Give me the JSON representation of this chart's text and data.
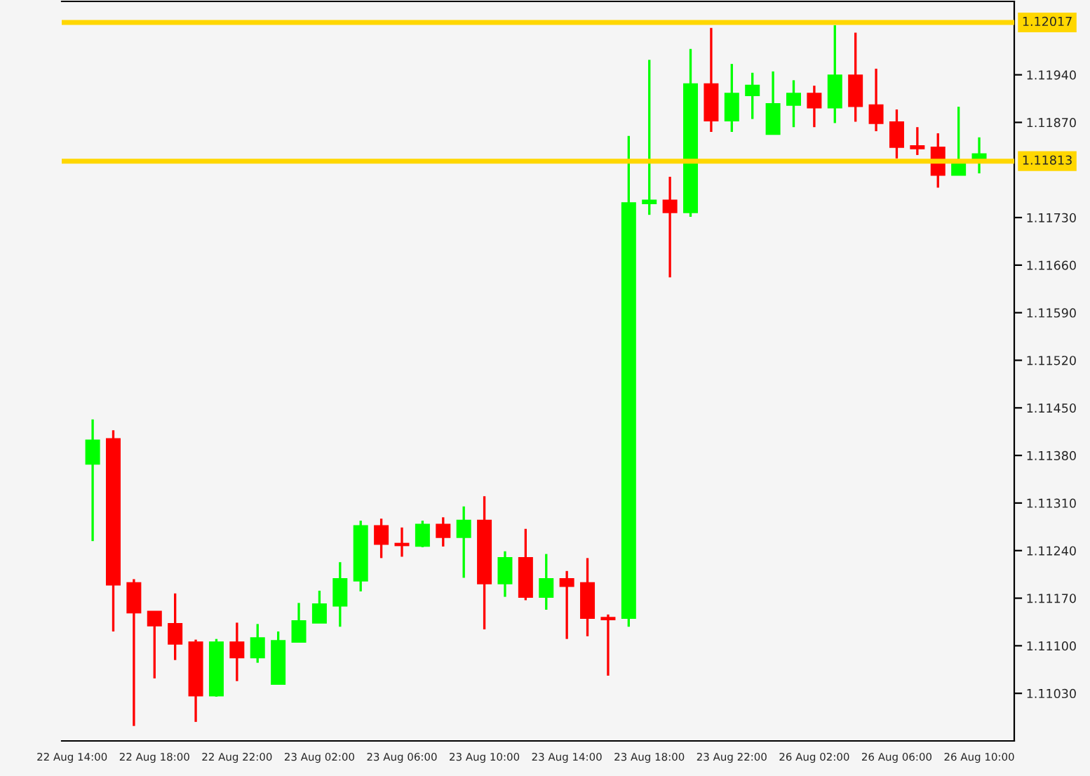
{
  "chart_data": {
    "type": "candlestick",
    "categories": [
      "22 Aug 14:00",
      null,
      null,
      null,
      "22 Aug 18:00",
      null,
      null,
      null,
      "22 Aug 22:00",
      null,
      null,
      null,
      "23 Aug 02:00",
      null,
      null,
      null,
      "23 Aug 06:00",
      null,
      null,
      null,
      "23 Aug 10:00",
      null,
      null,
      null,
      "23 Aug 14:00",
      null,
      null,
      null,
      "23 Aug 18:00",
      null,
      null,
      null,
      "23 Aug 22:00",
      null,
      null,
      null,
      "26 Aug 02:00",
      null,
      null,
      null,
      "26 Aug 06:00",
      null,
      null,
      null,
      "26 Aug 10:00"
    ],
    "ohlc": [
      null,
      [
        1.11368,
        1.11433,
        1.11254,
        1.11402
      ],
      [
        1.11404,
        1.11417,
        1.11121,
        1.1119
      ],
      [
        1.11192,
        1.11198,
        1.10982,
        1.11149
      ],
      [
        1.1115,
        1.1115,
        1.11052,
        1.1113
      ],
      [
        1.11132,
        1.11177,
        1.11079,
        1.11103
      ],
      [
        1.11105,
        1.11109,
        1.10988,
        1.11027
      ],
      [
        1.11027,
        1.1111,
        1.11025,
        1.11105
      ],
      [
        1.11105,
        1.11134,
        1.11048,
        1.11083
      ],
      [
        1.11083,
        1.11132,
        1.11075,
        1.11111
      ],
      [
        1.11044,
        1.11121,
        1.11044,
        1.11107
      ],
      [
        1.11106,
        1.11163,
        1.11106,
        1.11136
      ],
      [
        1.11134,
        1.11181,
        1.11134,
        1.11161
      ],
      [
        1.11159,
        1.11223,
        1.11128,
        1.11198
      ],
      [
        1.11196,
        1.11284,
        1.1118,
        1.11276
      ],
      [
        1.11276,
        1.11287,
        1.11229,
        1.1125
      ],
      [
        1.1125,
        1.11274,
        1.11231,
        1.11248
      ],
      [
        1.11247,
        1.11284,
        1.11245,
        1.11278
      ],
      [
        1.11278,
        1.11289,
        1.11246,
        1.1126
      ],
      [
        1.1126,
        1.11305,
        1.112,
        1.11284
      ],
      [
        1.11284,
        1.1132,
        1.11124,
        1.11192
      ],
      [
        1.11192,
        1.11239,
        1.11172,
        1.11229
      ],
      [
        1.11229,
        1.11272,
        1.11167,
        1.11172
      ],
      [
        1.11172,
        1.11235,
        1.11153,
        1.11198
      ],
      [
        1.11198,
        1.1121,
        1.1111,
        1.11188
      ],
      [
        1.11192,
        1.11229,
        1.11114,
        1.11141
      ],
      [
        1.11141,
        1.11146,
        1.11056,
        1.11139
      ],
      [
        1.11141,
        1.1185,
        1.11128,
        1.11751
      ],
      [
        1.11751,
        1.11962,
        1.11734,
        1.11755
      ],
      [
        1.11755,
        1.1179,
        1.11642,
        1.11738
      ],
      [
        1.11738,
        1.11978,
        1.11731,
        1.11926
      ],
      [
        1.11926,
        1.12009,
        1.11856,
        1.11873
      ],
      [
        1.11873,
        1.11956,
        1.11856,
        1.11912
      ],
      [
        1.1191,
        1.11943,
        1.11875,
        1.11924
      ],
      [
        1.11853,
        1.11945,
        1.11853,
        1.11897
      ],
      [
        1.11896,
        1.11932,
        1.11863,
        1.11912
      ],
      [
        1.11912,
        1.11924,
        1.11863,
        1.11892
      ],
      [
        1.11892,
        1.12013,
        1.11869,
        1.11939
      ],
      [
        1.11939,
        1.12002,
        1.11871,
        1.11894
      ],
      [
        1.11895,
        1.11949,
        1.11857,
        1.11869
      ],
      [
        1.1187,
        1.11889,
        1.11817,
        1.11834
      ],
      [
        1.11835,
        1.11863,
        1.11822,
        1.11832
      ],
      [
        1.11833,
        1.11854,
        1.11774,
        1.11793
      ],
      [
        1.11793,
        1.11893,
        1.11793,
        1.11813
      ],
      [
        1.11812,
        1.11848,
        1.11795,
        1.11823
      ]
    ],
    "colors": [
      null,
      "#00ff00",
      "#ff0000",
      "#ff0000",
      "#ff0000",
      "#ff0000",
      "#ff0000",
      "#00ff00",
      "#ff0000",
      "#00ff00",
      "#00ff00",
      "#00ff00",
      "#00ff00",
      "#00ff00",
      "#00ff00",
      "#ff0000",
      "#ff0000",
      "#00ff00",
      "#ff0000",
      "#00ff00",
      "#ff0000",
      "#00ff00",
      "#ff0000",
      "#00ff00",
      "#ff0000",
      "#ff0000",
      "#ff0000",
      "#00ff00",
      "#00ff00",
      "#ff0000",
      "#00ff00",
      "#ff0000",
      "#00ff00",
      "#00ff00",
      "#00ff00",
      "#00ff00",
      "#ff0000",
      "#00ff00",
      "#ff0000",
      "#ff0000",
      "#ff0000",
      "#ff0000",
      "#ff0000",
      "#00ff00",
      "#00ff00"
    ],
    "ylim": [
      1.1096,
      1.12048
    ],
    "yticks": [
      {
        "value": 1.1103,
        "label": "1.11030"
      },
      {
        "value": 1.111,
        "label": "1.11100"
      },
      {
        "value": 1.1117,
        "label": "1.11170"
      },
      {
        "value": 1.1124,
        "label": "1.11240"
      },
      {
        "value": 1.1131,
        "label": "1.11310"
      },
      {
        "value": 1.1138,
        "label": "1.11380"
      },
      {
        "value": 1.1145,
        "label": "1.11450"
      },
      {
        "value": 1.1152,
        "label": "1.11520"
      },
      {
        "value": 1.1159,
        "label": "1.11590"
      },
      {
        "value": 1.1166,
        "label": "1.11660"
      },
      {
        "value": 1.1173,
        "label": "1.11730"
      },
      {
        "value": 1.1187,
        "label": "1.11870"
      },
      {
        "value": 1.1194,
        "label": "1.11940"
      }
    ],
    "ref_lines": [
      {
        "axis": "y",
        "value": 1.12017,
        "label": "1.12017",
        "color": "#ffd700",
        "line_style": "solid"
      },
      {
        "axis": "y",
        "value": 1.11813,
        "label": "1.11813",
        "color": "#ffd700",
        "line_style": "solid"
      }
    ],
    "grid": false,
    "legend": false
  }
}
